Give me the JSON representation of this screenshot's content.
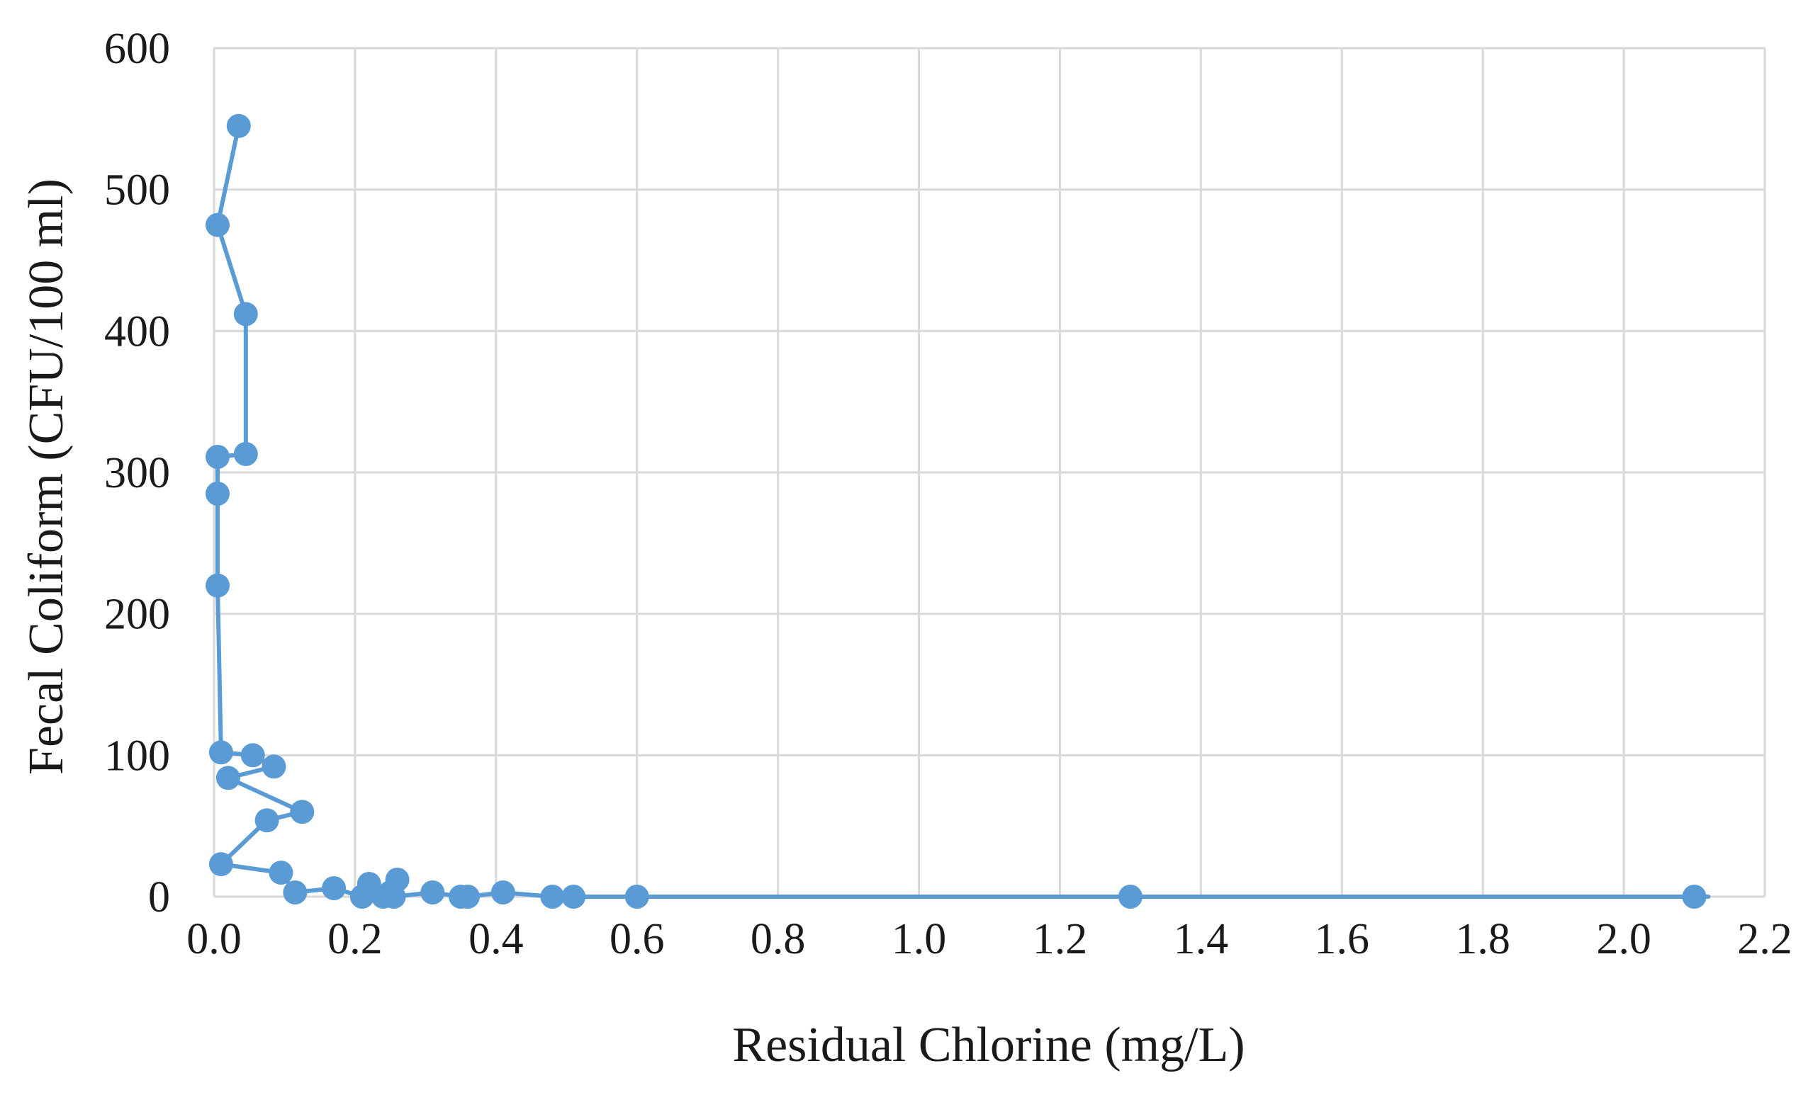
{
  "chart_data": {
    "type": "scatter",
    "title": "",
    "xlabel": "Residual Chlorine (mg/L)",
    "ylabel": "Fecal Coliform (CFU/100 ml)",
    "xlim": [
      0,
      2.2
    ],
    "ylim": [
      0,
      600
    ],
    "x_ticks": [
      "0.0",
      "0.2",
      "0.4",
      "0.6",
      "0.8",
      "1.0",
      "1.2",
      "1.4",
      "1.6",
      "1.8",
      "2.0",
      "2.2"
    ],
    "y_ticks": [
      "0",
      "100",
      "200",
      "300",
      "400",
      "500",
      "600"
    ],
    "grid": true,
    "legend": "none",
    "series": [
      {
        "marker": "circle",
        "line": "straight lines connecting points",
        "x": [
          0.035,
          0.005,
          0.045,
          0.045,
          0.005,
          0.005,
          0.005,
          0.01,
          0.055,
          0.085,
          0.02,
          0.125,
          0.075,
          0.01,
          0.095,
          0.115,
          0.17,
          0.21,
          0.22,
          0.24,
          0.25,
          0.26,
          0.255,
          0.31,
          0.35,
          0.36,
          0.41,
          0.48,
          0.51,
          0.6,
          1.3,
          2.1,
          2.12
        ],
        "y": [
          545,
          475,
          412,
          313,
          311,
          285,
          220,
          102,
          100,
          92,
          84,
          60,
          54,
          23,
          17,
          3,
          6,
          0,
          9,
          0,
          3,
          12,
          0,
          3,
          0,
          0,
          3,
          0,
          0,
          0,
          0,
          0,
          0
        ],
        "markers": [
          true,
          true,
          true,
          true,
          true,
          true,
          true,
          true,
          true,
          true,
          true,
          true,
          true,
          true,
          true,
          true,
          true,
          true,
          true,
          true,
          true,
          true,
          true,
          true,
          true,
          true,
          true,
          true,
          true,
          true,
          true,
          true,
          false
        ]
      }
    ]
  },
  "colors": {
    "series": "#5b9bd5",
    "grid": "#d9d9d9",
    "text": "#1a1a1a",
    "background": "#ffffff"
  }
}
